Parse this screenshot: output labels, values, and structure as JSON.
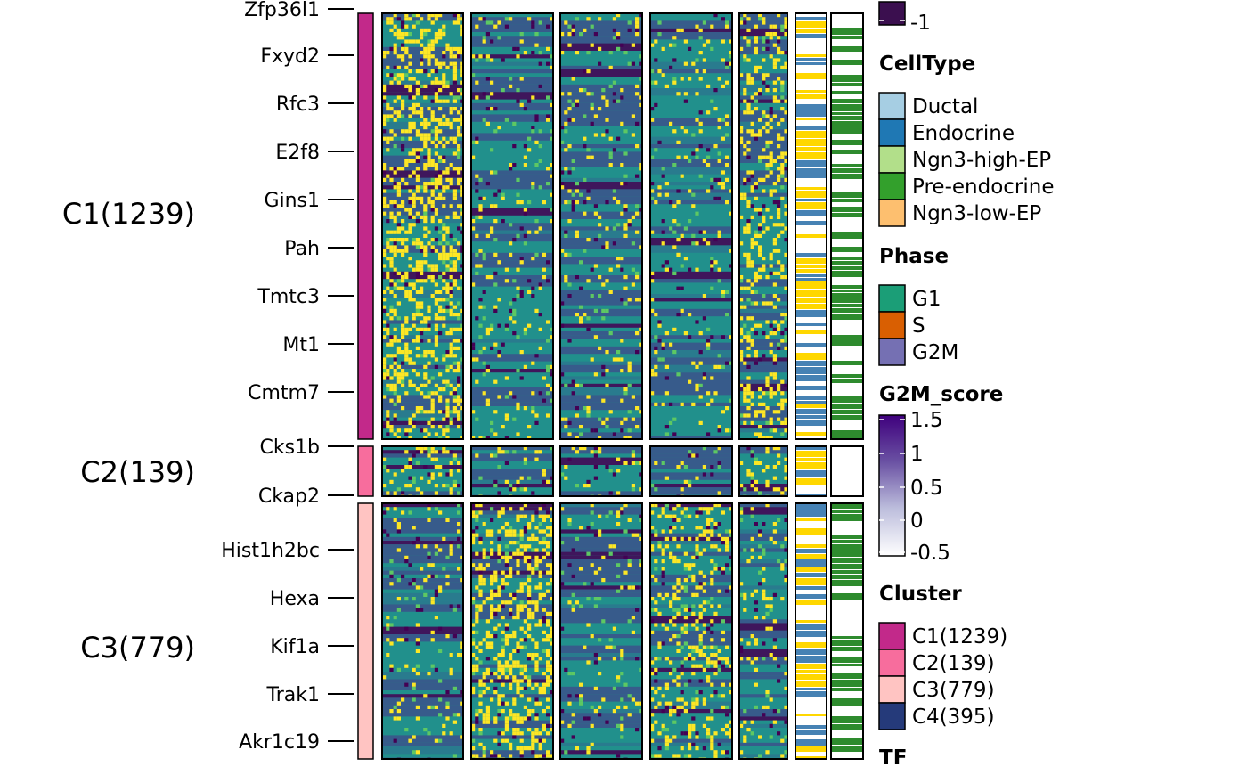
{
  "chart_data": {
    "type": "heatmap",
    "row_clusters": [
      {
        "label": "C1(1239)",
        "color": "#C2298A",
        "gene_labels": [
          "Zfp36l1",
          "Fxyd2",
          "Rfc3",
          "E2f8",
          "Gins1",
          "Pah",
          "Tmtc3",
          "Mt1",
          "Cmtm7"
        ]
      },
      {
        "label": "C2(139)",
        "color": "#F76D9D",
        "gene_labels": [
          "Cks1b",
          "Ckap2"
        ]
      },
      {
        "label": "C3(779)",
        "color": "#FFC4C2",
        "gene_labels": [
          "Hist1h2bc",
          "Hexa",
          "Kif1a",
          "Trak1",
          "Akr1c19"
        ]
      }
    ],
    "column_groups": 6,
    "annotation_columns": [
      {
        "colors": [
          "#FFD700",
          "#4682B4",
          "#FFFFFF"
        ]
      },
      {
        "colors": [
          "#2E8B2E",
          "#FFFFFF"
        ]
      }
    ],
    "heatmap_colors": [
      "#440154",
      "#3B528B",
      "#21908C",
      "#5DC863",
      "#FDE725"
    ],
    "legends": {
      "scale_top": {
        "last_label": "-1"
      },
      "celltype": {
        "title": "CellType",
        "items": [
          {
            "label": "Ductal",
            "color": "#A6CEE3"
          },
          {
            "label": "Endocrine",
            "color": "#1F78B4"
          },
          {
            "label": "Ngn3-high-EP",
            "color": "#B2DF8A"
          },
          {
            "label": "Pre-endocrine",
            "color": "#33A02C"
          },
          {
            "label": "Ngn3-low-EP",
            "color": "#FDBF6F"
          }
        ]
      },
      "phase": {
        "title": "Phase",
        "items": [
          {
            "label": "G1",
            "color": "#1B9E77"
          },
          {
            "label": "S",
            "color": "#D95F02"
          },
          {
            "label": "G2M",
            "color": "#7570B3"
          }
        ]
      },
      "g2m_score": {
        "title": "G2M_score",
        "ticks": [
          "1.5",
          "1",
          "0.5",
          "0",
          "-0.5"
        ],
        "colors": [
          "#3F007D",
          "#6A51A3",
          "#BCBDDC",
          "#FFFFFF"
        ]
      },
      "cluster": {
        "title": "Cluster",
        "items": [
          {
            "label": "C1(1239)",
            "color": "#C2298A"
          },
          {
            "label": "C2(139)",
            "color": "#F76D9D"
          },
          {
            "label": "C3(779)",
            "color": "#FFC4C2"
          },
          {
            "label": "C4(395)",
            "color": "#253A7A"
          }
        ]
      },
      "tf": {
        "title": "TF"
      }
    }
  }
}
